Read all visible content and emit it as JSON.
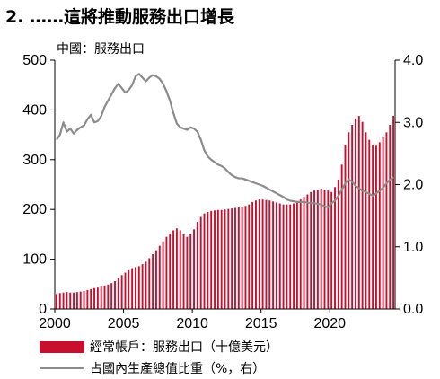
{
  "heading": "2. ……這將推動服務出口增長",
  "subtitle": "中國：服務出口",
  "legend": {
    "bar_label": "經常帳戶：服務出口（十億美元）",
    "line_label": "占國內生產總值比重（%，右）"
  },
  "colors": {
    "bar": "#c8102e",
    "line": "#8c8c8c",
    "axis": "#000000"
  },
  "chart_data": {
    "type": "bar",
    "xlim": [
      2000,
      2024.75
    ],
    "x_ticks": [
      "2000",
      "2005",
      "2010",
      "2015",
      "2020"
    ],
    "y_left": {
      "ylim": [
        0,
        500
      ],
      "ticks": [
        "0",
        "100",
        "200",
        "300",
        "400",
        "500"
      ]
    },
    "y_right": {
      "ylim": [
        0,
        4.0
      ],
      "ticks": [
        "0.0",
        "1.0",
        "2.0",
        "3.0",
        "4.0"
      ]
    },
    "series": [
      {
        "name": "經常帳戶：服務出口（十億美元）",
        "type": "bar",
        "axis": "left",
        "x": [
          2000.0,
          2000.25,
          2000.5,
          2000.75,
          2001.0,
          2001.25,
          2001.5,
          2001.75,
          2002.0,
          2002.25,
          2002.5,
          2002.75,
          2003.0,
          2003.25,
          2003.5,
          2003.75,
          2004.0,
          2004.25,
          2004.5,
          2004.75,
          2005.0,
          2005.25,
          2005.5,
          2005.75,
          2006.0,
          2006.25,
          2006.5,
          2006.75,
          2007.0,
          2007.25,
          2007.5,
          2007.75,
          2008.0,
          2008.25,
          2008.5,
          2008.75,
          2009.0,
          2009.25,
          2009.5,
          2009.75,
          2010.0,
          2010.25,
          2010.5,
          2010.75,
          2011.0,
          2011.25,
          2011.5,
          2011.75,
          2012.0,
          2012.25,
          2012.5,
          2012.75,
          2013.0,
          2013.25,
          2013.5,
          2013.75,
          2014.0,
          2014.25,
          2014.5,
          2014.75,
          2015.0,
          2015.25,
          2015.5,
          2015.75,
          2016.0,
          2016.25,
          2016.5,
          2016.75,
          2017.0,
          2017.25,
          2017.5,
          2017.75,
          2018.0,
          2018.25,
          2018.5,
          2018.75,
          2019.0,
          2019.25,
          2019.5,
          2019.75,
          2020.0,
          2020.25,
          2020.5,
          2020.75,
          2021.0,
          2021.25,
          2021.5,
          2021.75,
          2022.0,
          2022.25,
          2022.5,
          2022.75,
          2023.0,
          2023.25,
          2023.5,
          2023.75,
          2024.0,
          2024.25,
          2024.5
        ],
        "values": [
          30,
          32,
          33,
          34,
          33,
          33,
          34,
          35,
          36,
          38,
          40,
          42,
          43,
          45,
          47,
          49,
          52,
          56,
          62,
          68,
          73,
          78,
          82,
          84,
          86,
          90,
          95,
          102,
          110,
          118,
          127,
          136,
          145,
          152,
          158,
          162,
          158,
          150,
          145,
          150,
          160,
          175,
          185,
          192,
          195,
          197,
          198,
          199,
          199,
          200,
          201,
          202,
          203,
          204,
          205,
          207,
          210,
          215,
          218,
          220,
          220,
          219,
          218,
          216,
          214,
          212,
          210,
          210,
          210,
          212,
          215,
          220,
          225,
          230,
          235,
          238,
          240,
          242,
          240,
          238,
          235,
          245,
          260,
          290,
          330,
          355,
          370,
          383,
          388,
          376,
          355,
          340,
          330,
          328,
          335,
          345,
          355,
          370,
          388
        ]
      },
      {
        "name": "占國內生產總值比重（%，右）",
        "type": "line",
        "axis": "right",
        "x": [
          2000.0,
          2000.25,
          2000.5,
          2000.75,
          2001.0,
          2001.25,
          2001.5,
          2001.75,
          2002.0,
          2002.25,
          2002.5,
          2002.75,
          2003.0,
          2003.25,
          2003.5,
          2003.75,
          2004.0,
          2004.25,
          2004.5,
          2004.75,
          2005.0,
          2005.25,
          2005.5,
          2005.75,
          2006.0,
          2006.25,
          2006.5,
          2006.75,
          2007.0,
          2007.25,
          2007.5,
          2007.75,
          2008.0,
          2008.25,
          2008.5,
          2008.75,
          2009.0,
          2009.25,
          2009.5,
          2009.75,
          2010.0,
          2010.25,
          2010.5,
          2010.75,
          2011.0,
          2011.25,
          2011.5,
          2011.75,
          2012.0,
          2012.25,
          2012.5,
          2012.75,
          2013.0,
          2013.25,
          2013.5,
          2013.75,
          2014.0,
          2014.25,
          2014.5,
          2014.75,
          2015.0,
          2015.25,
          2015.5,
          2015.75,
          2016.0,
          2016.25,
          2016.5,
          2016.75,
          2017.0,
          2017.25,
          2017.5,
          2017.75,
          2018.0,
          2018.25,
          2018.5,
          2018.75,
          2019.0,
          2019.25,
          2019.5,
          2019.75,
          2020.0,
          2020.25,
          2020.5,
          2020.75,
          2021.0,
          2021.25,
          2021.5,
          2021.75,
          2022.0,
          2022.25,
          2022.5,
          2022.75,
          2023.0,
          2023.25,
          2023.5,
          2023.75,
          2024.0,
          2024.25,
          2024.5
        ],
        "values": [
          2.72,
          2.8,
          3.0,
          2.85,
          2.9,
          2.82,
          2.88,
          2.92,
          2.95,
          3.05,
          3.12,
          3.0,
          3.02,
          3.1,
          3.25,
          3.35,
          3.45,
          3.55,
          3.62,
          3.55,
          3.48,
          3.52,
          3.6,
          3.74,
          3.78,
          3.72,
          3.66,
          3.72,
          3.76,
          3.74,
          3.7,
          3.62,
          3.5,
          3.35,
          3.15,
          2.98,
          2.92,
          2.9,
          2.88,
          2.92,
          2.9,
          2.85,
          2.72,
          2.55,
          2.45,
          2.4,
          2.36,
          2.32,
          2.3,
          2.26,
          2.2,
          2.15,
          2.12,
          2.1,
          2.1,
          2.08,
          2.06,
          2.04,
          2.02,
          2.0,
          1.98,
          1.95,
          1.92,
          1.89,
          1.86,
          1.83,
          1.8,
          1.76,
          1.74,
          1.73,
          1.72,
          1.72,
          1.72,
          1.71,
          1.7,
          1.7,
          1.69,
          1.68,
          1.65,
          1.63,
          1.7,
          1.74,
          1.82,
          1.92,
          2.02,
          2.08,
          2.05,
          1.98,
          1.94,
          1.9,
          1.88,
          1.85,
          1.82,
          1.86,
          1.9,
          1.95,
          2.02,
          2.08,
          2.12
        ]
      }
    ]
  }
}
